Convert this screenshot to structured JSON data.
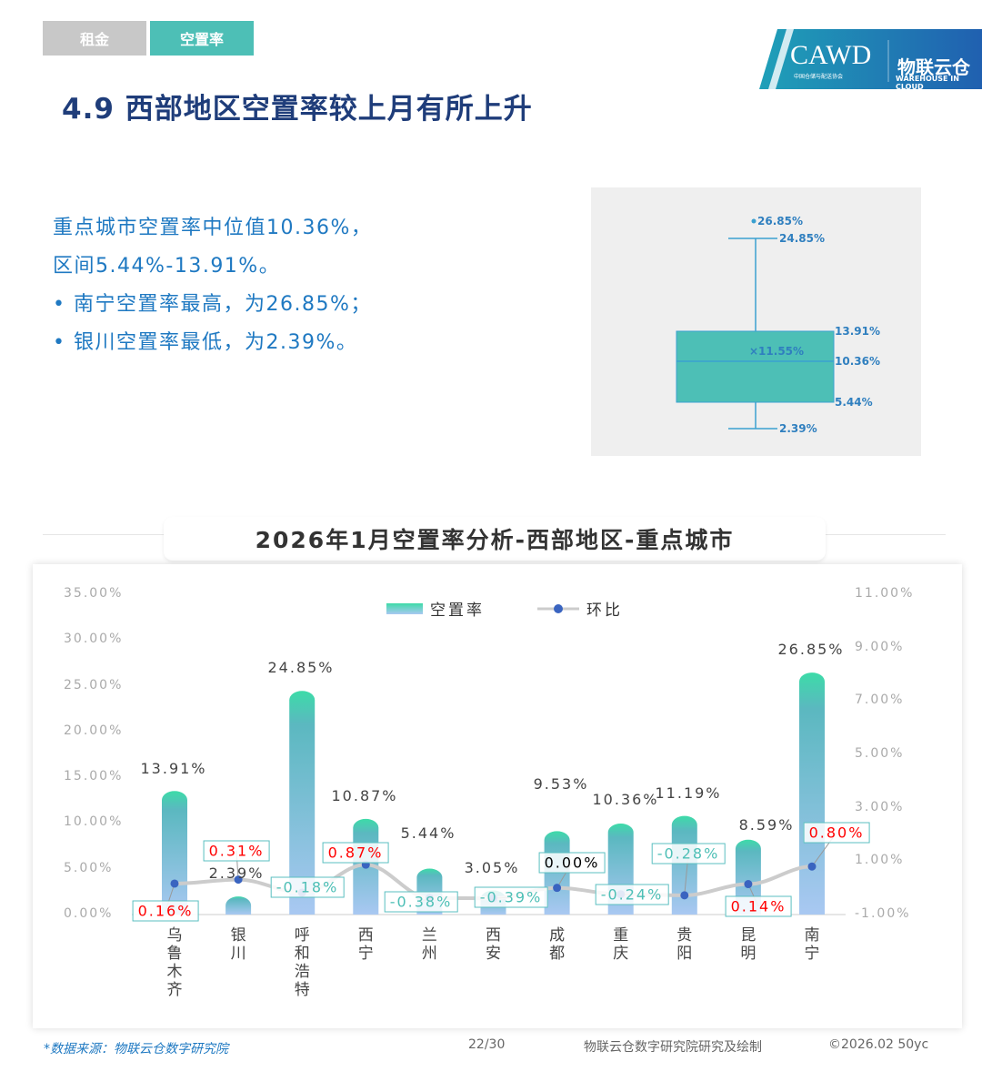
{
  "tabs": [
    {
      "label": "租金",
      "color": "#c8c8c8"
    },
    {
      "label": "空置率",
      "color": "#4dbfb6"
    }
  ],
  "logo": {
    "caw": "CAWD",
    "caw_sub": "中国仓储与配送协会",
    "wic": "物联云仓",
    "wic_en": "WAREHOUSE IN CLOUD"
  },
  "title": "4.9 西部地区空置率较上月有所上升",
  "intro": {
    "line1": "重点城市空置率中位值10.36%，",
    "line2": "区间5.44%-13.91%。",
    "bullets": [
      "南宁空置率最高，为26.85%；",
      "银川空置率最低，为2.39%。"
    ]
  },
  "boxplot": {
    "outlier": "26.85%",
    "max": "24.85%",
    "q3": "13.91%",
    "mean": "×11.55%",
    "median": "10.36%",
    "q1": "5.44%",
    "min": "2.39%",
    "values": {
      "outlier": 26.85,
      "max": 24.85,
      "q3": 13.91,
      "mean": 11.55,
      "median": 10.36,
      "q1": 5.44,
      "min": 2.39
    }
  },
  "chart_title": "2026年1月空置率分析-西部地区-重点城市",
  "chart_data": {
    "type": "bar+line",
    "categories": [
      "乌鲁木齐",
      "银川",
      "呼和浩特",
      "西宁",
      "兰州",
      "西安",
      "成都",
      "重庆",
      "贵阳",
      "昆明",
      "南宁"
    ],
    "series": [
      {
        "name": "空置率",
        "type": "bar",
        "axis": "left",
        "values": [
          13.91,
          2.39,
          24.85,
          10.87,
          5.44,
          3.05,
          9.53,
          10.36,
          11.19,
          8.59,
          26.85
        ],
        "labels": [
          "13.91%",
          "2.39%",
          "24.85%",
          "10.87%",
          "5.44%",
          "3.05%",
          "9.53%",
          "10.36%",
          "11.19%",
          "8.59%",
          "26.85%"
        ]
      },
      {
        "name": "环比",
        "type": "line",
        "axis": "right",
        "values": [
          0.16,
          0.31,
          -0.18,
          0.87,
          -0.38,
          -0.39,
          0.0,
          -0.24,
          -0.28,
          0.14,
          0.8
        ],
        "labels": [
          "0.16%",
          "0.31%",
          "-0.18%",
          "0.87%",
          "-0.38%",
          "-0.39%",
          "0.00%",
          "-0.24%",
          "-0.28%",
          "0.14%",
          "0.80%"
        ]
      }
    ],
    "y_left": {
      "range": [
        0,
        35
      ],
      "ticks": [
        "0.00%",
        "5.00%",
        "10.00%",
        "15.00%",
        "20.00%",
        "25.00%",
        "30.00%",
        "35.00%"
      ]
    },
    "y_right": {
      "range": [
        -1,
        11
      ],
      "ticks": [
        "-1.00%",
        "1.00%",
        "3.00%",
        "5.00%",
        "7.00%",
        "9.00%",
        "11.00%"
      ]
    },
    "legend": "top-center",
    "colors": {
      "bar_top": "#3ddba8",
      "bar_mid": "#5bb8c0",
      "bar_bottom": "#a9c8f2",
      "line": "#cccccc",
      "dot": "#3a64c0",
      "pos": "#ff0000",
      "neg": "#4dbfb6",
      "zero": "#000000"
    }
  },
  "footer": {
    "source": "*数据来源：物联云仓数字研究院",
    "page": "22/30",
    "credit": "物联云仓数字研究院研究及绘制",
    "copyright": "©2026.02 50yc"
  }
}
